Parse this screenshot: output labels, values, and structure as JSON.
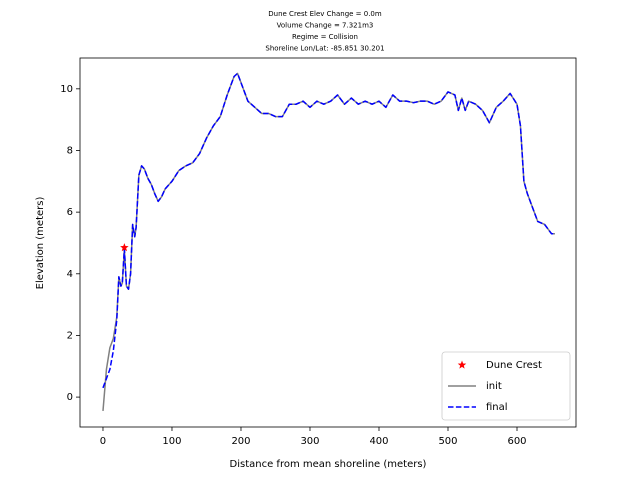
{
  "chart_data": {
    "type": "line",
    "title_lines": [
      "Dune Crest Elev Change = 0.0m",
      "Volume Change = 7.321m3",
      "Regime = Collision",
      "Shoreline Lon/Lat: -85.851 30.201"
    ],
    "xlabel": "Distance from mean shoreline (meters)",
    "ylabel": "Elevation (meters)",
    "xlim": [
      -33.3,
      685.5
    ],
    "ylim": [
      -0.97,
      11.0
    ],
    "xticks": [
      0,
      100,
      200,
      300,
      400,
      500,
      600
    ],
    "yticks": [
      0,
      2,
      4,
      6,
      8,
      10
    ],
    "legend": "lower right",
    "series": [
      {
        "name": "Dune Crest",
        "kind": "scatter",
        "color": "#ff0000",
        "x": [
          31
        ],
        "values": [
          4.85
        ]
      },
      {
        "name": "init",
        "kind": "line",
        "color": "#808080",
        "x": [
          0,
          5,
          10,
          15,
          20,
          23,
          26,
          28,
          31,
          34,
          37,
          40,
          43,
          46,
          48,
          52,
          56,
          60,
          65,
          70,
          75,
          80,
          85,
          90,
          100,
          110,
          120,
          130,
          140,
          150,
          160,
          170,
          180,
          190,
          195,
          200,
          210,
          220,
          230,
          240,
          250,
          260,
          270,
          280,
          290,
          300,
          310,
          320,
          330,
          340,
          350,
          360,
          370,
          380,
          390,
          400,
          410,
          420,
          430,
          440,
          450,
          460,
          470,
          480,
          490,
          500,
          510,
          515,
          520,
          525,
          530,
          540,
          550,
          560,
          570,
          580,
          590,
          600,
          605,
          610,
          615,
          620,
          630,
          640,
          650,
          655
        ],
        "values": [
          -0.45,
          0.9,
          1.6,
          1.9,
          2.6,
          3.9,
          3.6,
          3.7,
          4.8,
          3.6,
          3.5,
          4.0,
          5.6,
          5.2,
          5.5,
          7.2,
          7.5,
          7.4,
          7.1,
          6.9,
          6.6,
          6.35,
          6.5,
          6.75,
          7.0,
          7.35,
          7.5,
          7.6,
          7.9,
          8.4,
          8.8,
          9.1,
          9.8,
          10.4,
          10.5,
          10.2,
          9.6,
          9.4,
          9.2,
          9.2,
          9.1,
          9.1,
          9.5,
          9.5,
          9.6,
          9.4,
          9.6,
          9.5,
          9.6,
          9.8,
          9.5,
          9.7,
          9.5,
          9.6,
          9.5,
          9.6,
          9.4,
          9.8,
          9.6,
          9.6,
          9.55,
          9.6,
          9.6,
          9.5,
          9.6,
          9.9,
          9.8,
          9.3,
          9.7,
          9.3,
          9.6,
          9.5,
          9.3,
          8.9,
          9.4,
          9.6,
          9.85,
          9.5,
          8.8,
          7.0,
          6.6,
          6.3,
          5.7,
          5.6,
          5.3,
          5.3
        ]
      },
      {
        "name": "final",
        "kind": "dashed",
        "color": "#0000ff",
        "x": [
          0,
          5,
          10,
          15,
          20,
          23,
          26,
          28,
          31,
          34,
          37,
          40,
          43,
          46,
          48,
          52,
          56,
          60,
          65,
          70,
          75,
          80,
          85,
          90,
          100,
          110,
          120,
          130,
          140,
          150,
          160,
          170,
          180,
          190,
          195,
          200,
          210,
          220,
          230,
          240,
          250,
          260,
          270,
          280,
          290,
          300,
          310,
          320,
          330,
          340,
          350,
          360,
          370,
          380,
          390,
          400,
          410,
          420,
          430,
          440,
          450,
          460,
          470,
          480,
          490,
          500,
          510,
          515,
          520,
          525,
          530,
          540,
          550,
          560,
          570,
          580,
          590,
          600,
          605,
          610,
          615,
          620,
          630,
          640,
          650,
          655
        ],
        "values": [
          0.3,
          0.6,
          0.9,
          1.5,
          2.5,
          3.9,
          3.6,
          3.7,
          4.8,
          3.6,
          3.5,
          4.0,
          5.6,
          5.2,
          5.5,
          7.2,
          7.5,
          7.4,
          7.1,
          6.9,
          6.6,
          6.35,
          6.5,
          6.75,
          7.0,
          7.35,
          7.5,
          7.6,
          7.9,
          8.4,
          8.8,
          9.1,
          9.8,
          10.4,
          10.5,
          10.2,
          9.6,
          9.4,
          9.2,
          9.2,
          9.1,
          9.1,
          9.5,
          9.5,
          9.6,
          9.4,
          9.6,
          9.5,
          9.6,
          9.8,
          9.5,
          9.7,
          9.5,
          9.6,
          9.5,
          9.6,
          9.4,
          9.8,
          9.6,
          9.6,
          9.55,
          9.6,
          9.6,
          9.5,
          9.6,
          9.9,
          9.8,
          9.3,
          9.7,
          9.3,
          9.6,
          9.5,
          9.3,
          8.9,
          9.4,
          9.6,
          9.85,
          9.5,
          8.8,
          7.0,
          6.6,
          6.3,
          5.7,
          5.6,
          5.3,
          5.3
        ]
      }
    ]
  }
}
